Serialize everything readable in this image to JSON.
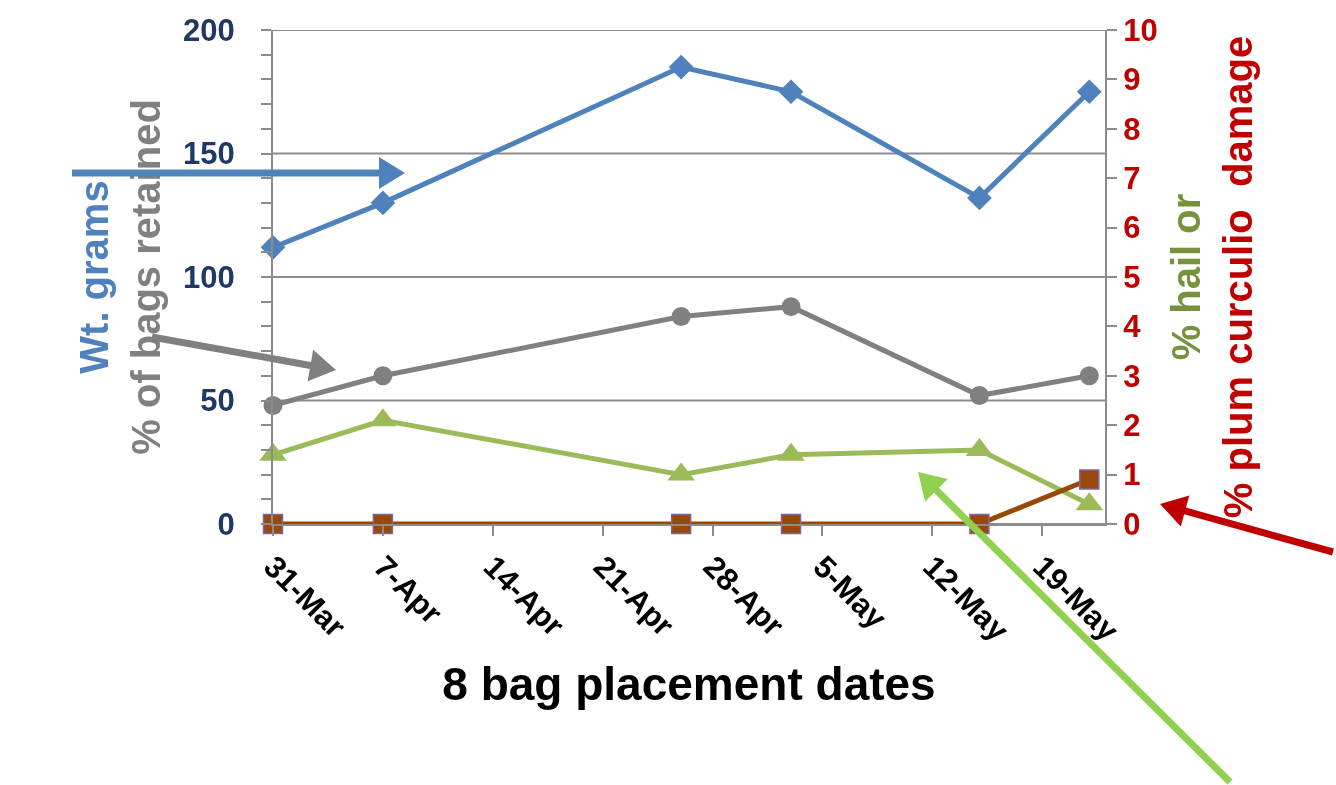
{
  "chart_data": {
    "type": "line",
    "xlabel": "8 bag placement dates",
    "ylabel": "Wt. grams\n% of bags retained",
    "y2label": "% hail or\n% plum curculio  damage",
    "x": [
      "--03-31",
      "--04-07",
      "--04-26",
      "--05-03",
      "--05-15",
      "--05-22"
    ],
    "series": [
      {
        "color": "#4f81bd",
        "marker": "diamond",
        "values": [
          112,
          130,
          185,
          175,
          132,
          175
        ]
      },
      {
        "color": "#808080",
        "marker": "circle",
        "values": [
          48,
          60,
          84,
          88,
          52,
          60
        ]
      },
      {
        "color": "#9bbb59",
        "marker": "triangle",
        "axis": "y2",
        "values": [
          1.4,
          2.1,
          1.0,
          1.4,
          1.5,
          0.4
        ]
      },
      {
        "color": "#984807",
        "marker": "square",
        "axis": "y2",
        "values": [
          0,
          0,
          0,
          0,
          0,
          0.9
        ]
      }
    ],
    "xlim": [
      "--03-31",
      "--05-23"
    ],
    "xticks": [
      {
        "value": "--03-31",
        "label": "31-Mar"
      },
      {
        "value": "--04-07",
        "label": "7-Apr"
      },
      {
        "value": "--04-14",
        "label": "14-Apr"
      },
      {
        "value": "--04-21",
        "label": "21-Apr"
      },
      {
        "value": "--04-28",
        "label": "28-Apr"
      },
      {
        "value": "--05-05",
        "label": "5-May"
      },
      {
        "value": "--05-12",
        "label": "12-May"
      },
      {
        "value": "--05-19",
        "label": "19-May"
      }
    ],
    "ylim": [
      0,
      200
    ],
    "yticks": [
      0,
      {
        "value": 10,
        "label": null
      },
      {
        "value": 20,
        "label": null
      },
      {
        "value": 30,
        "label": null
      },
      {
        "value": 40,
        "label": null
      },
      50,
      {
        "value": 60,
        "label": null
      },
      {
        "value": 70,
        "label": null
      },
      {
        "value": 80,
        "label": null
      },
      {
        "value": 90,
        "label": null
      },
      100,
      {
        "value": 110,
        "label": null
      },
      {
        "value": 120,
        "label": null
      },
      {
        "value": 130,
        "label": null
      },
      {
        "value": 140,
        "label": null
      },
      150,
      {
        "value": 160,
        "label": null
      },
      {
        "value": 170,
        "label": null
      },
      {
        "value": 180,
        "label": null
      },
      {
        "value": 190,
        "label": null
      },
      200
    ],
    "y2lim": [
      0,
      10
    ],
    "y2ticks": [
      0,
      1,
      2,
      3,
      4,
      5,
      6,
      7,
      8,
      9,
      10
    ],
    "grid": "y",
    "line_style": "solid"
  }
}
